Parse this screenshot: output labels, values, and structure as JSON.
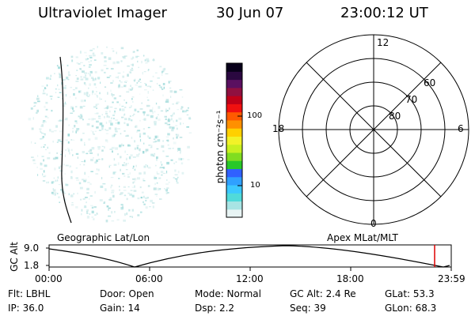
{
  "header": {
    "instrument": "Ultraviolet Imager",
    "date": "30 Jun 07",
    "time": "23:00:12 UT"
  },
  "colorbar": {
    "label": "photon cm⁻²s⁻¹",
    "ticks": [
      "100",
      "10"
    ],
    "scale": "log",
    "colors": [
      "#e8f4f4",
      "#a8e4e4",
      "#50dada",
      "#3cc8ff",
      "#2fa0ff",
      "#3060ff",
      "#28c828",
      "#80dd20",
      "#c8f020",
      "#f2f228",
      "#ffd000",
      "#ff9000",
      "#ff5a00",
      "#f01010",
      "#c00018",
      "#901040",
      "#5a1060",
      "#2a0840",
      "#08001a"
    ]
  },
  "polar_plot": {
    "lat_labels": [
      "60",
      "70",
      "80"
    ],
    "mlt_labels": {
      "top": "12",
      "left": "18",
      "right": "6",
      "bottom": "0"
    }
  },
  "projection_labels": {
    "left": "Geographic Lat/Lon",
    "right": "Apex MLat/MLT"
  },
  "timeline": {
    "ylabel": "GC Alt",
    "y_ticks": [
      "9.0",
      "1.8"
    ],
    "x_ticks": [
      "00:00",
      "06:00",
      "12:00",
      "18:00",
      "23:59"
    ],
    "marker_color": "#dd0000"
  },
  "status": {
    "filter": "Flt:  LBHL",
    "ip": "IP:  36.0",
    "door": "Door:  Open",
    "gain": "Gain:  14",
    "mode": "Mode:  Normal",
    "dsp": "Dsp:      2.2",
    "gc_alt": "GC Alt:  2.4 Re",
    "seq": "Seq:  39",
    "glat": "GLat:     53.3",
    "glon": "GLon:     68.3"
  }
}
